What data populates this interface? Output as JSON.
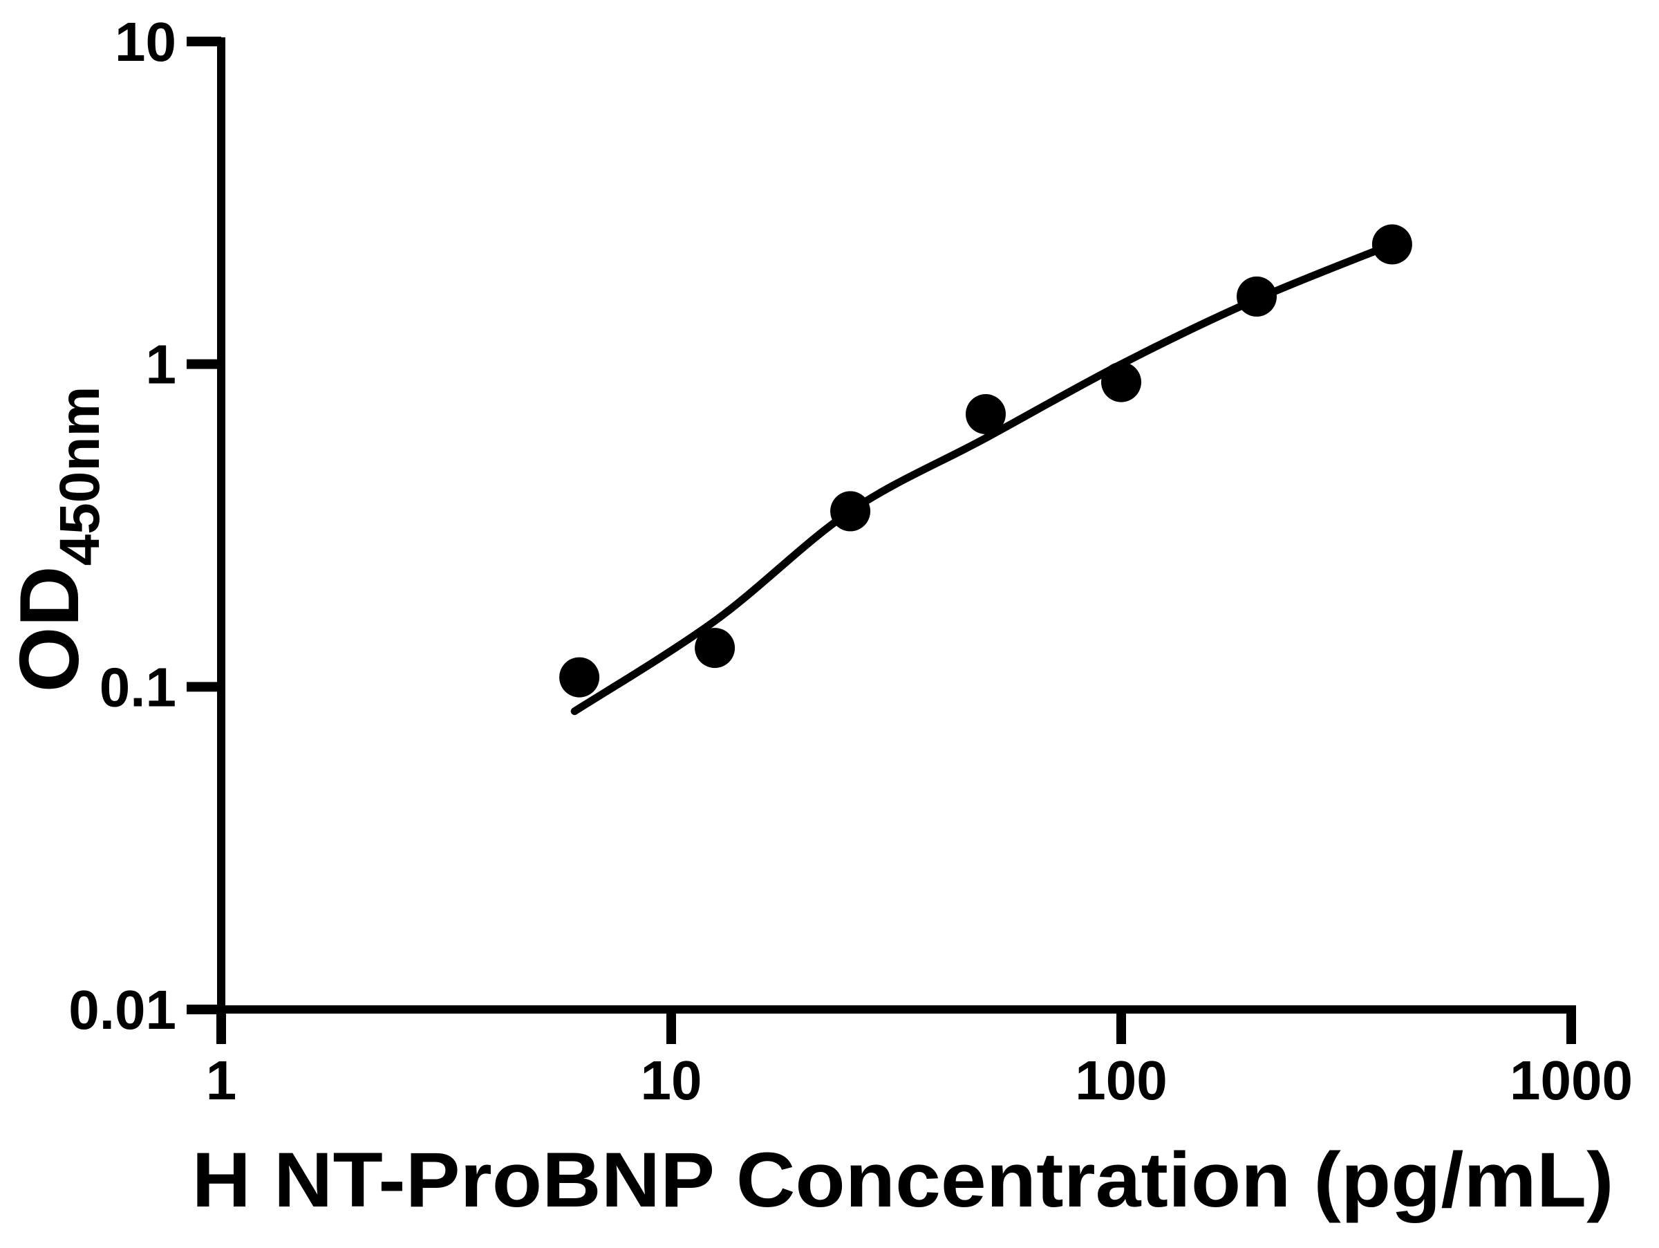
{
  "chart_data": {
    "type": "scatter",
    "title": "",
    "xlabel": "H NT-ProBNP Concentration (pg/mL)",
    "ylabel_main": "OD",
    "ylabel_sub": "450nm",
    "x_scale": "log",
    "y_scale": "log",
    "xlim": [
      1,
      1000
    ],
    "ylim": [
      0.01,
      10
    ],
    "grid": false,
    "legend": "none",
    "x_ticks": [
      {
        "value": 1,
        "label": "1"
      },
      {
        "value": 10,
        "label": "10"
      },
      {
        "value": 100,
        "label": "100"
      },
      {
        "value": 1000,
        "label": "1000"
      }
    ],
    "y_ticks": [
      {
        "value": 10,
        "label": "10"
      },
      {
        "value": 1,
        "label": "1"
      },
      {
        "value": 0.1,
        "label": "0.1"
      },
      {
        "value": 0.01,
        "label": "0.01"
      }
    ],
    "series": [
      {
        "name": "standard-curve-points",
        "marker": "filled-circle",
        "points": [
          {
            "x": 6.25,
            "y": 0.107
          },
          {
            "x": 12.5,
            "y": 0.132
          },
          {
            "x": 25,
            "y": 0.35
          },
          {
            "x": 50,
            "y": 0.7
          },
          {
            "x": 100,
            "y": 0.88
          },
          {
            "x": 200,
            "y": 1.62
          },
          {
            "x": 400,
            "y": 2.35
          }
        ]
      }
    ],
    "fit_curve": {
      "name": "four-parameter-fit",
      "anchors": [
        [
          6.1,
          0.084
        ],
        [
          12.5,
          0.16
        ],
        [
          25,
          0.35
        ],
        [
          50,
          0.59
        ],
        [
          100,
          1.0
        ],
        [
          200,
          1.59
        ],
        [
          400,
          2.35
        ]
      ]
    },
    "colors": {
      "marker": "#000000",
      "curve": "#000000",
      "axis": "#000000",
      "background": "#ffffff"
    }
  }
}
